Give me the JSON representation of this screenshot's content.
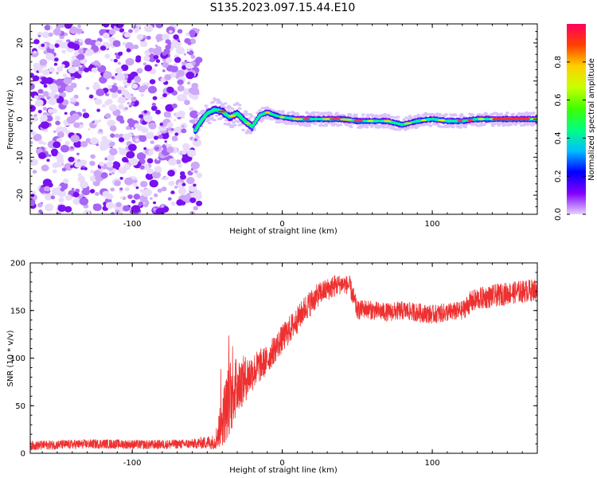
{
  "figure_title": "S135.2023.097.15.44.E10",
  "chart_data": [
    {
      "type": "heatmap",
      "title": "",
      "xlabel": "Height of straight line (km)",
      "ylabel": "Frequency (Hz)",
      "xlim": [
        -168,
        170
      ],
      "ylim": [
        -25,
        25
      ],
      "xticks": [
        -100,
        0,
        100
      ],
      "yticks": [
        -20,
        -10,
        0,
        10,
        20
      ],
      "noise_region_x": [
        -168,
        -55
      ],
      "ridge": {
        "description_points_x": [
          -58,
          -55,
          -50,
          -45,
          -40,
          -35,
          -30,
          -25,
          -20,
          -15,
          -10,
          -5,
          0,
          10,
          20,
          30,
          40,
          50,
          60,
          70,
          80,
          90,
          100,
          110,
          120,
          130,
          140,
          150,
          160,
          170
        ],
        "frequency_hz": [
          -3,
          -1,
          1.5,
          2.5,
          2,
          0.5,
          1.5,
          -0.5,
          -2,
          1,
          1.8,
          1,
          0.5,
          0,
          0,
          0,
          0,
          -0.5,
          -0.5,
          -0.5,
          -1.5,
          -0.5,
          0,
          -0.5,
          -0.5,
          0,
          0,
          0,
          0,
          0
        ]
      },
      "colorbar": {
        "label": "Normalized spectral amplitude",
        "range": [
          0,
          1
        ],
        "ticks": [
          0.0,
          0.2,
          0.4,
          0.6,
          0.8
        ],
        "colors": [
          "#e6d2ff",
          "#8000ff",
          "#0000ff",
          "#00c0ff",
          "#00ff80",
          "#40ff00",
          "#c8ff00",
          "#ffd000",
          "#ff4000",
          "#ff0060"
        ]
      }
    },
    {
      "type": "line",
      "title": "",
      "xlabel": "Height of straight line (km)",
      "ylabel": "SNR (10 * v/v)",
      "xlim": [
        -168,
        170
      ],
      "ylim": [
        0,
        200
      ],
      "xticks": [
        -100,
        0,
        100
      ],
      "yticks": [
        0,
        50,
        100,
        150,
        200
      ],
      "color": "#ee3030",
      "series": [
        {
          "x": [
            -168,
            -150,
            -120,
            -90,
            -60,
            -45,
            -42,
            -38,
            -35,
            -30,
            -25,
            -20,
            -15,
            -10,
            -5,
            0,
            5,
            10,
            15,
            20,
            25,
            30,
            35,
            40,
            45,
            48,
            50,
            55,
            60,
            70,
            80,
            90,
            100,
            110,
            120,
            125,
            130,
            140,
            150,
            160,
            170
          ],
          "y": [
            8,
            9,
            10,
            9,
            10,
            12,
            25,
            45,
            60,
            70,
            78,
            85,
            92,
            98,
            110,
            120,
            130,
            140,
            152,
            160,
            168,
            172,
            176,
            178,
            176,
            160,
            150,
            152,
            150,
            148,
            150,
            148,
            146,
            148,
            150,
            158,
            162,
            165,
            168,
            170,
            172
          ],
          "noise_amplitude": [
            5,
            5,
            5,
            5,
            5,
            8,
            20,
            35,
            40,
            30,
            25,
            20,
            18,
            15,
            15,
            15,
            15,
            14,
            14,
            14,
            12,
            12,
            12,
            10,
            10,
            12,
            10,
            10,
            10,
            10,
            10,
            10,
            10,
            10,
            10,
            12,
            12,
            12,
            12,
            12,
            12
          ]
        }
      ]
    }
  ]
}
